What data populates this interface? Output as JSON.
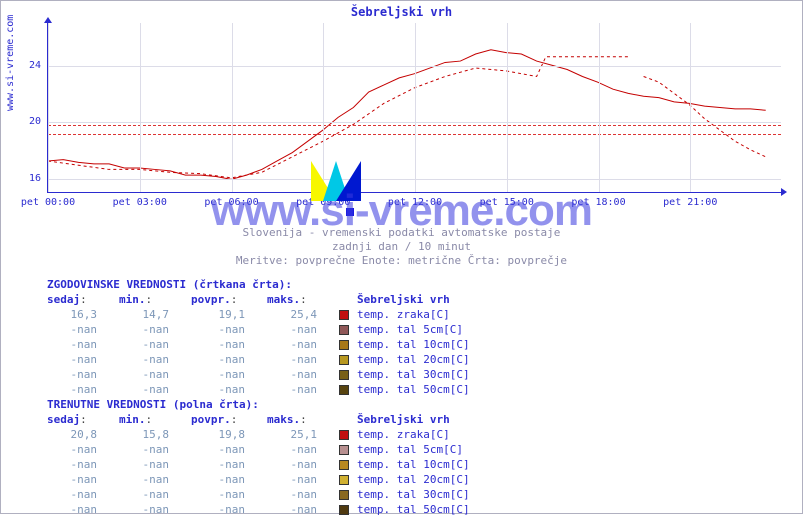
{
  "source_url": "www.si-vreme.com",
  "watermark": "www.si-vreme.com",
  "chart": {
    "type": "line",
    "title": "Šebreljski vrh",
    "yticks": [
      16,
      20,
      24
    ],
    "ylim": [
      15,
      27
    ],
    "xticks": [
      "pet 00:00",
      "pet 03:00",
      "pet 06:00",
      "pet 09:00",
      "pet 12:00",
      "pet 15:00",
      "pet 18:00",
      "pet 21:00"
    ],
    "avg_line_value": 19.5,
    "grid_color": "#dcdce8",
    "axis_color": "#2b2bd0",
    "series": [
      {
        "name": "trenutne-temp-zraka",
        "style": "solid",
        "color": "#c40000",
        "width": 1,
        "points": [
          [
            0,
            17.2
          ],
          [
            0.5,
            17.3
          ],
          [
            1,
            17.1
          ],
          [
            1.5,
            17.0
          ],
          [
            2,
            17.0
          ],
          [
            2.5,
            16.7
          ],
          [
            3,
            16.7
          ],
          [
            3.5,
            16.6
          ],
          [
            4,
            16.5
          ],
          [
            4.5,
            16.2
          ],
          [
            5,
            16.2
          ],
          [
            5.5,
            16.1
          ],
          [
            6,
            15.9
          ],
          [
            6.5,
            16.2
          ],
          [
            7,
            16.6
          ],
          [
            7.5,
            17.2
          ],
          [
            8,
            17.8
          ],
          [
            8.5,
            18.6
          ],
          [
            9,
            19.4
          ],
          [
            9.5,
            20.3
          ],
          [
            10,
            21.0
          ],
          [
            10.5,
            22.1
          ],
          [
            11,
            22.6
          ],
          [
            11.5,
            23.1
          ],
          [
            12,
            23.4
          ],
          [
            12.5,
            23.8
          ],
          [
            13,
            24.2
          ],
          [
            13.5,
            24.3
          ],
          [
            14,
            24.8
          ],
          [
            14.5,
            25.1
          ],
          [
            15,
            24.9
          ],
          [
            15.5,
            24.8
          ],
          [
            16,
            24.3
          ],
          [
            16.5,
            24.0
          ],
          [
            17,
            23.7
          ],
          [
            17.5,
            23.2
          ],
          [
            18,
            22.8
          ],
          [
            18.5,
            22.3
          ],
          [
            19,
            22.0
          ],
          [
            19.5,
            21.8
          ],
          [
            20,
            21.7
          ],
          [
            20.5,
            21.4
          ],
          [
            21,
            21.3
          ],
          [
            21.5,
            21.1
          ],
          [
            22,
            21.0
          ],
          [
            22.5,
            20.9
          ],
          [
            23,
            20.9
          ],
          [
            23.5,
            20.8
          ]
        ]
      },
      {
        "name": "zgodovinske-temp-zraka",
        "style": "dashed",
        "color": "#c40000",
        "width": 1,
        "points": [
          [
            0,
            17.2
          ],
          [
            1,
            16.9
          ],
          [
            2,
            16.6
          ],
          [
            3,
            16.6
          ],
          [
            4,
            16.4
          ],
          [
            5,
            16.3
          ],
          [
            6,
            16.0
          ],
          [
            7,
            16.4
          ],
          [
            8,
            17.5
          ],
          [
            9,
            18.6
          ],
          [
            10,
            19.8
          ],
          [
            11,
            21.3
          ],
          [
            12,
            22.4
          ],
          [
            13,
            23.2
          ],
          [
            14,
            23.8
          ],
          [
            15,
            23.6
          ],
          [
            16,
            23.2
          ],
          [
            16.3,
            24.6
          ],
          [
            19,
            24.6
          ],
          [
            19.01,
            null
          ],
          [
            19.5,
            23.2
          ],
          [
            20,
            22.8
          ],
          [
            20.5,
            22.0
          ],
          [
            21,
            21.2
          ],
          [
            21.5,
            20.2
          ],
          [
            22,
            19.4
          ],
          [
            22.5,
            18.6
          ],
          [
            23,
            18.0
          ],
          [
            23.5,
            17.5
          ]
        ]
      }
    ]
  },
  "captions": {
    "l1": "Slovenija - vremenski podatki avtomatske postaje",
    "l2": "zadnji dan / 10 minut",
    "l3": "Meritve: povprečne  Enote: metrične  Črta: povprečje"
  },
  "sections": [
    {
      "title": "ZGODOVINSKE VREDNOSTI (črtkana črta):",
      "headers": {
        "sedaj": "sedaj",
        "min": "min.",
        "povpr": "povpr.",
        "maks": "maks.",
        "station": "Šebreljski vrh"
      },
      "rows": [
        {
          "sedaj": "16,3",
          "min": "14,7",
          "povpr": "19,1",
          "maks": "25,4",
          "sw": "#c01010",
          "label": "temp. zraka[C]"
        },
        {
          "sedaj": "-nan",
          "min": "-nan",
          "povpr": "-nan",
          "maks": "-nan",
          "sw": "#905858",
          "label": "temp. tal  5cm[C]"
        },
        {
          "sedaj": "-nan",
          "min": "-nan",
          "povpr": "-nan",
          "maks": "-nan",
          "sw": "#a87818",
          "label": "temp. tal 10cm[C]"
        },
        {
          "sedaj": "-nan",
          "min": "-nan",
          "povpr": "-nan",
          "maks": "-nan",
          "sw": "#b89820",
          "label": "temp. tal 20cm[C]"
        },
        {
          "sedaj": "-nan",
          "min": "-nan",
          "povpr": "-nan",
          "maks": "-nan",
          "sw": "#786018",
          "label": "temp. tal 30cm[C]"
        },
        {
          "sedaj": "-nan",
          "min": "-nan",
          "povpr": "-nan",
          "maks": "-nan",
          "sw": "#584410",
          "label": "temp. tal 50cm[C]"
        }
      ]
    },
    {
      "title": "TRENUTNE VREDNOSTI (polna črta):",
      "headers": {
        "sedaj": "sedaj",
        "min": "min.",
        "povpr": "povpr.",
        "maks": "maks.",
        "station": "Šebreljski vrh"
      },
      "rows": [
        {
          "sedaj": "20,8",
          "min": "15,8",
          "povpr": "19,8",
          "maks": "25,1",
          "sw": "#c01010",
          "label": "temp. zraka[C]"
        },
        {
          "sedaj": "-nan",
          "min": "-nan",
          "povpr": "-nan",
          "maks": "-nan",
          "sw": "#b89090",
          "label": "temp. tal  5cm[C]"
        },
        {
          "sedaj": "-nan",
          "min": "-nan",
          "povpr": "-nan",
          "maks": "-nan",
          "sw": "#b88820",
          "label": "temp. tal 10cm[C]"
        },
        {
          "sedaj": "-nan",
          "min": "-nan",
          "povpr": "-nan",
          "maks": "-nan",
          "sw": "#d0b030",
          "label": "temp. tal 20cm[C]"
        },
        {
          "sedaj": "-nan",
          "min": "-nan",
          "povpr": "-nan",
          "maks": "-nan",
          "sw": "#886820",
          "label": "temp. tal 30cm[C]"
        },
        {
          "sedaj": "-nan",
          "min": "-nan",
          "povpr": "-nan",
          "maks": "-nan",
          "sw": "#503a10",
          "label": "temp. tal 50cm[C]"
        }
      ]
    }
  ]
}
